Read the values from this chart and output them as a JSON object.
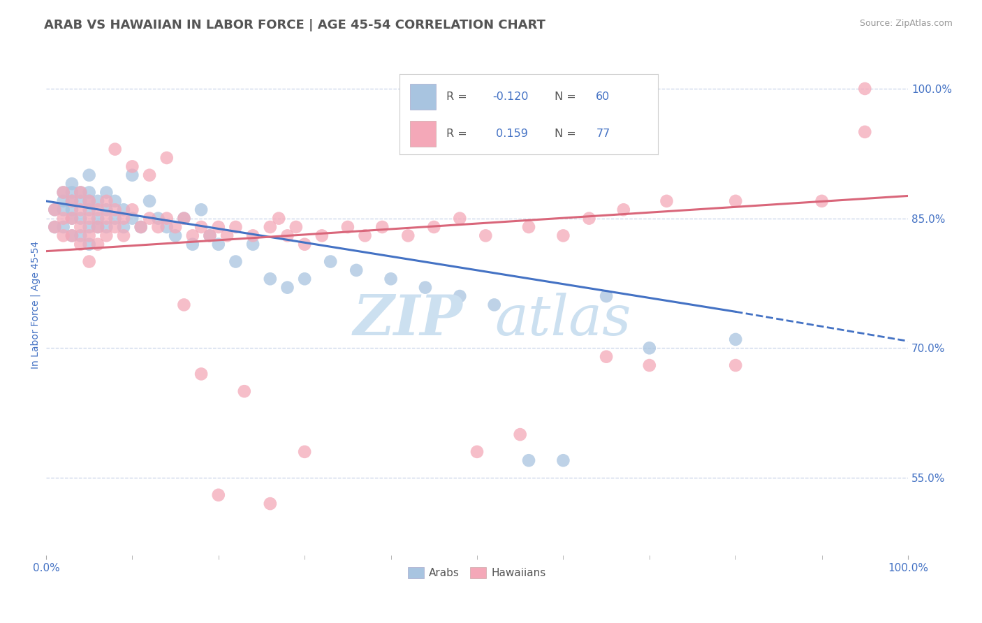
{
  "title": "ARAB VS HAWAIIAN IN LABOR FORCE | AGE 45-54 CORRELATION CHART",
  "source_text": "Source: ZipAtlas.com",
  "ylabel": "In Labor Force | Age 45-54",
  "xlim": [
    0.0,
    1.0
  ],
  "ylim": [
    0.46,
    1.04
  ],
  "yticks": [
    0.55,
    0.7,
    0.85,
    1.0
  ],
  "ytick_labels": [
    "55.0%",
    "70.0%",
    "85.0%",
    "100.0%"
  ],
  "xtick_labels": [
    "0.0%",
    "100.0%"
  ],
  "arab_R": -0.12,
  "arab_N": 60,
  "hawaiian_R": 0.159,
  "hawaiian_N": 77,
  "arab_color": "#a8c4e0",
  "hawaiian_color": "#f4a8b8",
  "arab_line_color": "#4472c4",
  "hawaiian_line_color": "#d9667a",
  "title_color": "#555555",
  "axis_label_color": "#4472c4",
  "tick_label_color": "#4472c4",
  "background_color": "#ffffff",
  "grid_color": "#c8d4e8",
  "watermark_color": "#cce0f0",
  "arab_line_start_y": 0.87,
  "arab_line_end_x": 0.8,
  "arab_line_end_y": 0.742,
  "arab_line_dash_end_x": 1.0,
  "arab_line_dash_end_y": 0.708,
  "hawaiian_line_start_y": 0.812,
  "hawaiian_line_end_x": 1.0,
  "hawaiian_line_end_y": 0.876,
  "arab_x": [
    0.01,
    0.01,
    0.02,
    0.02,
    0.02,
    0.02,
    0.03,
    0.03,
    0.03,
    0.03,
    0.03,
    0.03,
    0.04,
    0.04,
    0.04,
    0.04,
    0.05,
    0.05,
    0.05,
    0.05,
    0.05,
    0.05,
    0.06,
    0.06,
    0.06,
    0.07,
    0.07,
    0.07,
    0.08,
    0.08,
    0.09,
    0.09,
    0.1,
    0.1,
    0.11,
    0.12,
    0.13,
    0.14,
    0.15,
    0.16,
    0.17,
    0.18,
    0.19,
    0.2,
    0.22,
    0.24,
    0.26,
    0.28,
    0.3,
    0.33,
    0.36,
    0.4,
    0.44,
    0.48,
    0.52,
    0.56,
    0.6,
    0.65,
    0.7,
    0.8
  ],
  "arab_y": [
    0.86,
    0.84,
    0.88,
    0.87,
    0.86,
    0.84,
    0.89,
    0.88,
    0.87,
    0.86,
    0.85,
    0.83,
    0.88,
    0.87,
    0.85,
    0.83,
    0.9,
    0.88,
    0.87,
    0.86,
    0.84,
    0.82,
    0.87,
    0.85,
    0.84,
    0.88,
    0.86,
    0.84,
    0.87,
    0.85,
    0.86,
    0.84,
    0.9,
    0.85,
    0.84,
    0.87,
    0.85,
    0.84,
    0.83,
    0.85,
    0.82,
    0.86,
    0.83,
    0.82,
    0.8,
    0.82,
    0.78,
    0.77,
    0.78,
    0.8,
    0.79,
    0.78,
    0.77,
    0.76,
    0.75,
    0.57,
    0.57,
    0.76,
    0.7,
    0.71
  ],
  "hawaiian_x": [
    0.01,
    0.01,
    0.02,
    0.02,
    0.02,
    0.03,
    0.03,
    0.03,
    0.04,
    0.04,
    0.04,
    0.04,
    0.05,
    0.05,
    0.05,
    0.05,
    0.06,
    0.06,
    0.06,
    0.07,
    0.07,
    0.07,
    0.08,
    0.08,
    0.09,
    0.09,
    0.1,
    0.11,
    0.12,
    0.13,
    0.14,
    0.15,
    0.16,
    0.17,
    0.18,
    0.19,
    0.2,
    0.21,
    0.22,
    0.24,
    0.26,
    0.27,
    0.28,
    0.29,
    0.3,
    0.32,
    0.35,
    0.37,
    0.39,
    0.42,
    0.45,
    0.48,
    0.51,
    0.56,
    0.6,
    0.63,
    0.67,
    0.72,
    0.8,
    0.95,
    0.08,
    0.1,
    0.12,
    0.14,
    0.16,
    0.18,
    0.2,
    0.23,
    0.26,
    0.3,
    0.5,
    0.55,
    0.65,
    0.7,
    0.8,
    0.9,
    0.95
  ],
  "hawaiian_y": [
    0.86,
    0.84,
    0.88,
    0.85,
    0.83,
    0.87,
    0.85,
    0.83,
    0.88,
    0.86,
    0.84,
    0.82,
    0.87,
    0.85,
    0.83,
    0.8,
    0.86,
    0.84,
    0.82,
    0.87,
    0.85,
    0.83,
    0.86,
    0.84,
    0.85,
    0.83,
    0.86,
    0.84,
    0.85,
    0.84,
    0.85,
    0.84,
    0.85,
    0.83,
    0.84,
    0.83,
    0.84,
    0.83,
    0.84,
    0.83,
    0.84,
    0.85,
    0.83,
    0.84,
    0.82,
    0.83,
    0.84,
    0.83,
    0.84,
    0.83,
    0.84,
    0.85,
    0.83,
    0.84,
    0.83,
    0.85,
    0.86,
    0.87,
    0.87,
    0.95,
    0.93,
    0.91,
    0.9,
    0.92,
    0.75,
    0.67,
    0.53,
    0.65,
    0.52,
    0.58,
    0.58,
    0.6,
    0.69,
    0.68,
    0.68,
    0.87,
    1.0
  ]
}
